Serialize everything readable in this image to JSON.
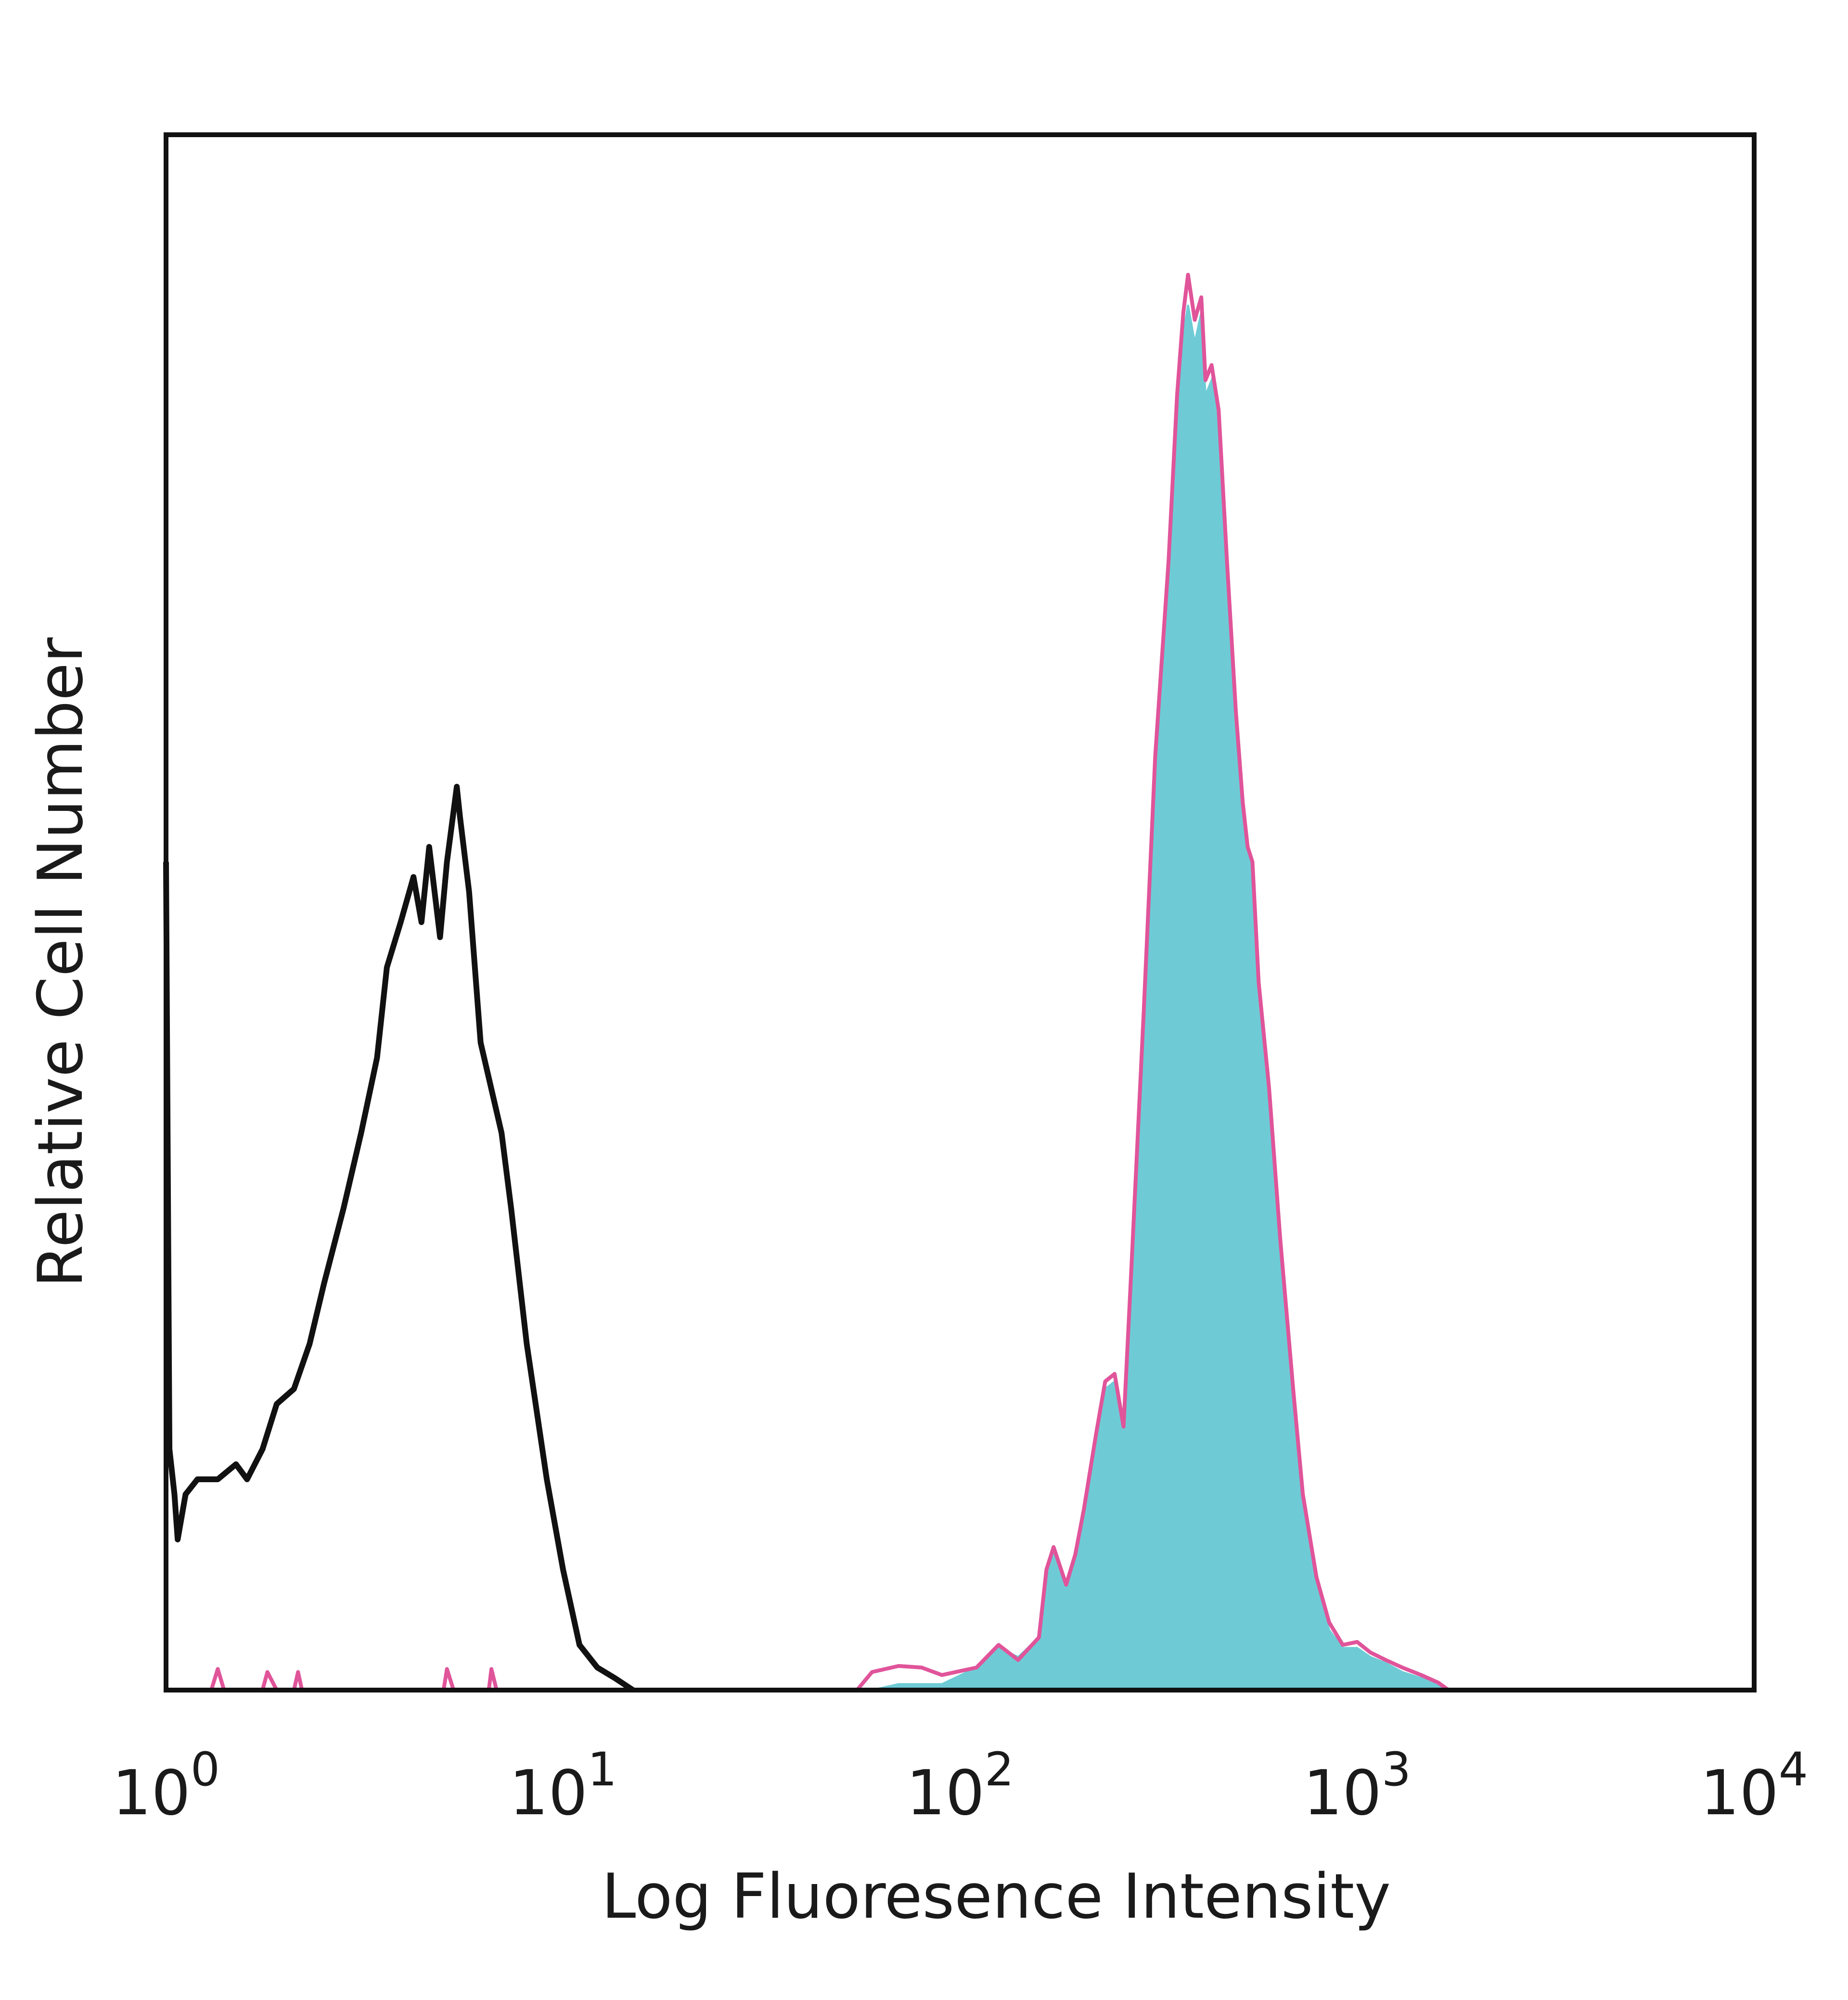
{
  "chart_data": {
    "type": "area",
    "xlabel": "Log Fluoresence Intensity",
    "ylabel": "Relative Cell Number",
    "x_scale": "log",
    "xlim": [
      1,
      10000
    ],
    "ylim": [
      0,
      100
    ],
    "xticks": [
      {
        "value": 1,
        "base": "10",
        "exp": "0"
      },
      {
        "value": 10,
        "base": "10",
        "exp": "1"
      },
      {
        "value": 100,
        "base": "10",
        "exp": "2"
      },
      {
        "value": 1000,
        "base": "10",
        "exp": "3"
      },
      {
        "value": 10000,
        "base": "10",
        "exp": "4"
      }
    ],
    "grid": false,
    "legend": "none",
    "series": [
      {
        "style": "outline",
        "color": "#111111",
        "points": [
          [
            1.0,
            55
          ],
          [
            1.02,
            16
          ],
          [
            1.05,
            13
          ],
          [
            1.07,
            10
          ],
          [
            1.12,
            13
          ],
          [
            1.2,
            14
          ],
          [
            1.35,
            14
          ],
          [
            1.5,
            15
          ],
          [
            1.6,
            14
          ],
          [
            1.75,
            16
          ],
          [
            1.9,
            19
          ],
          [
            2.1,
            20
          ],
          [
            2.3,
            23
          ],
          [
            2.5,
            27
          ],
          [
            2.8,
            32
          ],
          [
            3.1,
            37
          ],
          [
            3.4,
            42
          ],
          [
            3.6,
            48
          ],
          [
            3.9,
            51
          ],
          [
            4.2,
            54
          ],
          [
            4.4,
            51
          ],
          [
            4.6,
            56
          ],
          [
            4.9,
            50
          ],
          [
            5.1,
            55
          ],
          [
            5.4,
            60
          ],
          [
            5.5,
            58
          ],
          [
            5.8,
            53
          ],
          [
            6.2,
            43
          ],
          [
            7.0,
            37
          ],
          [
            7.4,
            32
          ],
          [
            8.1,
            23
          ],
          [
            9.1,
            14
          ],
          [
            10.0,
            8
          ],
          [
            11.0,
            3
          ],
          [
            12.2,
            1.5
          ],
          [
            13.5,
            0.8
          ],
          [
            15.0,
            0
          ]
        ]
      },
      {
        "style": "outline",
        "color": "#e0549a",
        "points": [
          [
            1.0,
            0
          ],
          [
            1.3,
            0
          ],
          [
            1.35,
            1.4
          ],
          [
            1.4,
            0
          ],
          [
            1.75,
            0
          ],
          [
            1.8,
            1.2
          ],
          [
            1.9,
            0
          ],
          [
            2.1,
            0
          ],
          [
            2.15,
            1.2
          ],
          [
            2.2,
            0
          ],
          [
            5.0,
            0
          ],
          [
            5.1,
            1.4
          ],
          [
            5.3,
            0
          ],
          [
            6.5,
            0
          ],
          [
            6.6,
            1.4
          ],
          [
            6.8,
            0
          ],
          [
            55,
            0
          ],
          [
            60,
            1.2
          ],
          [
            70,
            1.6
          ],
          [
            80,
            1.5
          ],
          [
            90,
            1.0
          ],
          [
            110,
            1.5
          ],
          [
            125,
            3.0
          ],
          [
            140,
            2.0
          ],
          [
            158,
            3.5
          ],
          [
            165,
            8.0
          ],
          [
            172,
            9.5
          ],
          [
            185,
            7.0
          ],
          [
            195,
            9.0
          ],
          [
            205,
            12.0
          ],
          [
            220,
            17.0
          ],
          [
            232,
            20.5
          ],
          [
            245,
            21.0
          ],
          [
            258,
            17.5
          ],
          [
            270,
            28.0
          ],
          [
            290,
            45.0
          ],
          [
            310,
            62.0
          ],
          [
            335,
            75.0
          ],
          [
            352,
            86.0
          ],
          [
            365,
            91.5
          ],
          [
            375,
            94.0
          ],
          [
            390,
            91.0
          ],
          [
            405,
            92.5
          ],
          [
            415,
            87.0
          ],
          [
            430,
            88.0
          ],
          [
            448,
            85.0
          ],
          [
            470,
            75.0
          ],
          [
            495,
            65.0
          ],
          [
            515,
            59.0
          ],
          [
            530,
            56.0
          ],
          [
            545,
            55.0
          ],
          [
            565,
            47.0
          ],
          [
            600,
            40.0
          ],
          [
            640,
            30.0
          ],
          [
            690,
            20.0
          ],
          [
            730,
            13.0
          ],
          [
            790,
            7.5
          ],
          [
            850,
            4.5
          ],
          [
            920,
            3.0
          ],
          [
            1000,
            3.2
          ],
          [
            1080,
            2.5
          ],
          [
            1180,
            2.0
          ],
          [
            1300,
            1.5
          ],
          [
            1450,
            1.0
          ],
          [
            1600,
            0.5
          ],
          [
            1700,
            0
          ]
        ]
      },
      {
        "style": "filled",
        "color": "#6ecbd6",
        "points": [
          [
            60,
            0
          ],
          [
            70,
            0.4
          ],
          [
            90,
            0.4
          ],
          [
            110,
            1.5
          ],
          [
            125,
            2.8
          ],
          [
            140,
            2.2
          ],
          [
            158,
            3.5
          ],
          [
            165,
            7.5
          ],
          [
            172,
            9.0
          ],
          [
            185,
            7.0
          ],
          [
            195,
            8.5
          ],
          [
            205,
            11.5
          ],
          [
            220,
            16.5
          ],
          [
            232,
            20.0
          ],
          [
            245,
            20.5
          ],
          [
            258,
            17.5
          ],
          [
            270,
            27.0
          ],
          [
            290,
            44.0
          ],
          [
            310,
            61.0
          ],
          [
            335,
            74.0
          ],
          [
            352,
            84.0
          ],
          [
            365,
            90.0
          ],
          [
            375,
            92.0
          ],
          [
            390,
            89.5
          ],
          [
            405,
            91.5
          ],
          [
            415,
            86.0
          ],
          [
            430,
            87.0
          ],
          [
            448,
            84.0
          ],
          [
            470,
            74.0
          ],
          [
            495,
            64.0
          ],
          [
            515,
            58.5
          ],
          [
            530,
            55.5
          ],
          [
            545,
            54.5
          ],
          [
            565,
            46.5
          ],
          [
            600,
            39.5
          ],
          [
            640,
            29.5
          ],
          [
            690,
            19.5
          ],
          [
            730,
            12.5
          ],
          [
            790,
            7.0
          ],
          [
            850,
            4.0
          ],
          [
            920,
            2.8
          ],
          [
            1000,
            2.8
          ],
          [
            1080,
            2.2
          ],
          [
            1180,
            1.8
          ],
          [
            1300,
            1.2
          ],
          [
            1450,
            0.8
          ],
          [
            1600,
            0.3
          ],
          [
            1700,
            0
          ]
        ]
      }
    ]
  }
}
